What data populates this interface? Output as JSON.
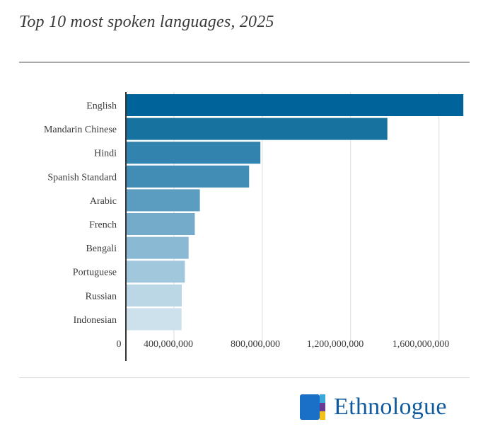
{
  "title": "Top 10 most spoken languages, 2025",
  "brand": {
    "name": "Ethnologue",
    "colors": [
      "#1a6fc7",
      "#6b3a93",
      "#f2c21a",
      "#3aa8d8"
    ]
  },
  "chart_data": {
    "type": "bar",
    "orientation": "horizontal",
    "title": "Top 10 most spoken languages, 2025",
    "categories": [
      "English",
      "Mandarin Chinese",
      "Hindi",
      "Spanish Standard",
      "Arabic",
      "French",
      "Bengali",
      "Portuguese",
      "Russian",
      "Indonesian"
    ],
    "values": [
      1528000000,
      1184000000,
      609000000,
      558000000,
      335000000,
      312000000,
      284000000,
      267000000,
      253000000,
      252000000
    ],
    "colors": [
      "#006399",
      "#18729f",
      "#3283ae",
      "#418db5",
      "#5a9dc1",
      "#74abcb",
      "#8ab9d3",
      "#a1c7dc",
      "#bbd7e6",
      "#cde1ec"
    ],
    "xlim": [
      0,
      1600000000
    ],
    "xticks": [
      {
        "value": 0,
        "label": "0"
      },
      {
        "value": 400000000,
        "label": "400,000,000"
      },
      {
        "value": 800000000,
        "label": "800,000,000"
      },
      {
        "value": 1200000000,
        "label": "1,200,000,000"
      },
      {
        "value": 1600000000,
        "label": "1,600,000,000"
      }
    ],
    "grid": true,
    "legend": "none",
    "xlabel": "",
    "ylabel": ""
  }
}
